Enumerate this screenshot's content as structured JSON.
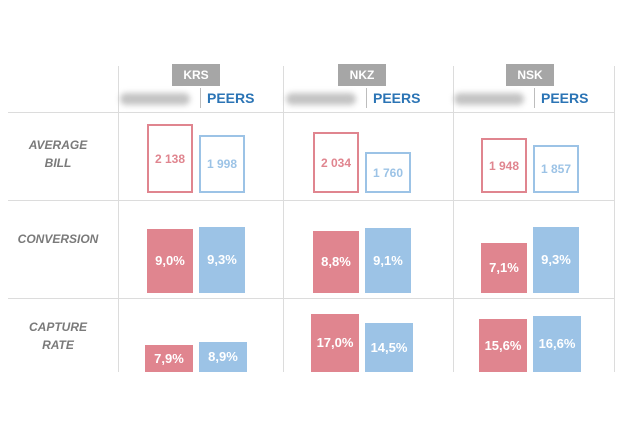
{
  "columns": [
    {
      "region": "KRS",
      "ours_label": "",
      "peers_label": "PEERS"
    },
    {
      "region": "NKZ",
      "ours_label": "",
      "peers_label": "PEERS"
    },
    {
      "region": "NSK",
      "ours_label": "",
      "peers_label": "PEERS"
    }
  ],
  "rows": [
    {
      "label_lines": [
        "AVERAGE",
        "BILL"
      ],
      "style": "outline"
    },
    {
      "label_lines": [
        "CONVERSION"
      ],
      "style": "filled"
    },
    {
      "label_lines": [
        "CAPTURE",
        "RATE"
      ],
      "style": "filled"
    }
  ],
  "colors": {
    "ours": "#e0858f",
    "peers": "#9cc3e6",
    "peers_text": "#2b74b5",
    "tag": "#a6a6a6",
    "label": "#7a7a7a"
  },
  "chart_data": [
    {
      "type": "bar",
      "title": "AVERAGE BILL",
      "categories": [
        "KRS",
        "NKZ",
        "NSK"
      ],
      "series": [
        {
          "name": "",
          "values": [
            2138,
            2034,
            1948
          ],
          "labels": [
            "2 138",
            "2 034",
            "1 948"
          ]
        },
        {
          "name": "PEERS",
          "values": [
            1998,
            1760,
            1857
          ],
          "labels": [
            "1 998",
            "1 760",
            "1 857"
          ]
        }
      ]
    },
    {
      "type": "bar",
      "title": "CONVERSION",
      "categories": [
        "KRS",
        "NKZ",
        "NSK"
      ],
      "series": [
        {
          "name": "",
          "values": [
            9.0,
            8.8,
            7.1
          ],
          "labels": [
            "9,0%",
            "8,8%",
            "7,1%"
          ]
        },
        {
          "name": "PEERS",
          "values": [
            9.3,
            9.1,
            9.3
          ],
          "labels": [
            "9,3%",
            "9,1%",
            "9,3%"
          ]
        }
      ]
    },
    {
      "type": "bar",
      "title": "CAPTURE RATE",
      "categories": [
        "KRS",
        "NKZ",
        "NSK"
      ],
      "series": [
        {
          "name": "",
          "values": [
            7.9,
            17.0,
            15.6
          ],
          "labels": [
            "7,9%",
            "17,0%",
            "15,6%"
          ]
        },
        {
          "name": "PEERS",
          "values": [
            8.9,
            14.5,
            16.6
          ],
          "labels": [
            "8,9%",
            "14,5%",
            "16,6%"
          ]
        }
      ]
    }
  ]
}
